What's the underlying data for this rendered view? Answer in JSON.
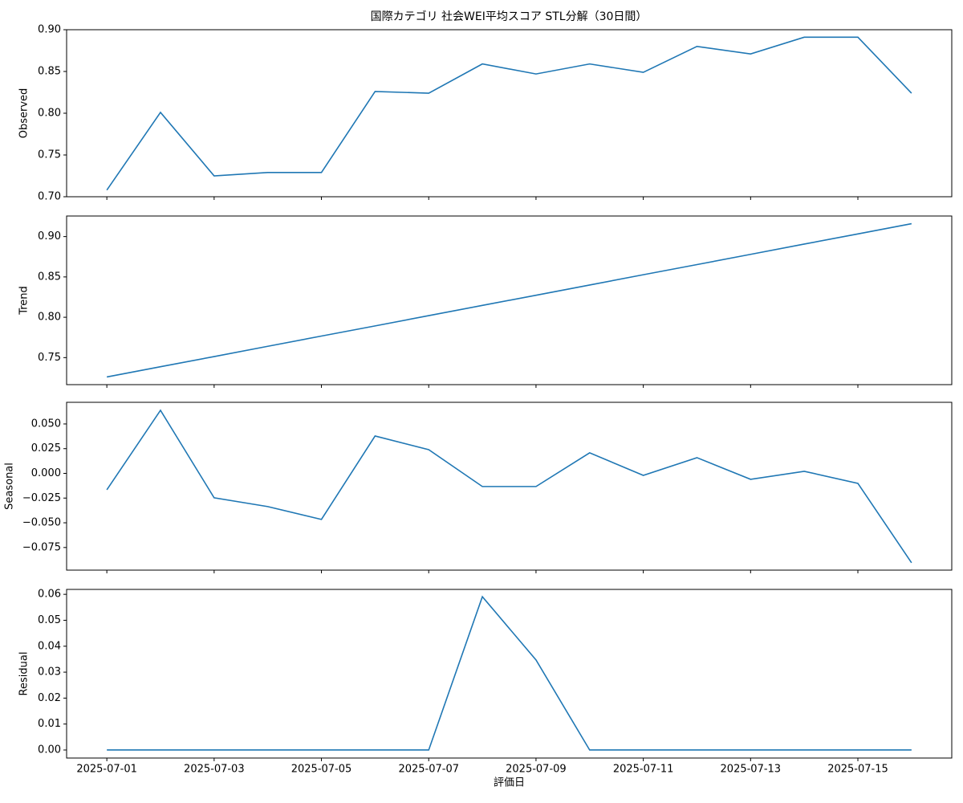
{
  "chart_data": [
    {
      "type": "line",
      "title": "国際カテゴリ 社会WEI平均スコア STL分解（30日間）",
      "ylabel": "Observed",
      "x": [
        "2025-07-01",
        "2025-07-02",
        "2025-07-03",
        "2025-07-04",
        "2025-07-05",
        "2025-07-06",
        "2025-07-07",
        "2025-07-08",
        "2025-07-09",
        "2025-07-10",
        "2025-07-11",
        "2025-07-12",
        "2025-07-13",
        "2025-07-14",
        "2025-07-15",
        "2025-07-16"
      ],
      "values": [
        0.708,
        0.801,
        0.725,
        0.729,
        0.729,
        0.826,
        0.824,
        0.859,
        0.847,
        0.859,
        0.849,
        0.88,
        0.871,
        0.891,
        0.891,
        0.824
      ],
      "color": "#1f77b4",
      "ylim": [
        0.7,
        0.9
      ],
      "yticks": [
        {
          "value": 0.7,
          "label": "0.70"
        },
        0.75,
        {
          "value": 0.8,
          "label": "0.80"
        },
        0.85,
        {
          "value": 0.9,
          "label": "0.90"
        }
      ]
    },
    {
      "type": "line",
      "ylabel": "Trend",
      "x": [
        "2025-07-01",
        "2025-07-02",
        "2025-07-03",
        "2025-07-04",
        "2025-07-05",
        "2025-07-06",
        "2025-07-07",
        "2025-07-08",
        "2025-07-09",
        "2025-07-10",
        "2025-07-11",
        "2025-07-12",
        "2025-07-13",
        "2025-07-14",
        "2025-07-15",
        "2025-07-16"
      ],
      "values": [
        0.726,
        0.7387,
        0.7513,
        0.764,
        0.7767,
        0.7893,
        0.802,
        0.8147,
        0.8273,
        0.84,
        0.8527,
        0.8653,
        0.878,
        0.8907,
        0.9033,
        0.916
      ],
      "color": "#1f77b4",
      "ylim": [
        0.7165,
        0.9255
      ],
      "yticks": [
        0.75,
        {
          "value": 0.8,
          "label": "0.80"
        },
        0.85,
        {
          "value": 0.9,
          "label": "0.90"
        }
      ]
    },
    {
      "type": "line",
      "ylabel": "Seasonal",
      "x": [
        "2025-07-01",
        "2025-07-02",
        "2025-07-03",
        "2025-07-04",
        "2025-07-05",
        "2025-07-06",
        "2025-07-07",
        "2025-07-08",
        "2025-07-09",
        "2025-07-10",
        "2025-07-11",
        "2025-07-12",
        "2025-07-13",
        "2025-07-14",
        "2025-07-15",
        "2025-07-16"
      ],
      "values": [
        -0.0166,
        0.0638,
        -0.0247,
        -0.0336,
        -0.0466,
        0.0378,
        0.024,
        -0.0133,
        -0.0133,
        0.0208,
        -0.002,
        0.0159,
        -0.006,
        0.0021,
        -0.0101,
        -0.0904
      ],
      "color": "#1f77b4",
      "ylim": [
        -0.0979,
        0.0719
      ],
      "yticks": [
        {
          "value": -0.075,
          "label": "−0.075"
        },
        {
          "value": -0.05,
          "label": "−0.050"
        },
        {
          "value": -0.025,
          "label": "−0.025"
        },
        {
          "value": 0,
          "label": "0.000"
        },
        {
          "value": 0.025,
          "label": "0.025"
        },
        {
          "value": 0.05,
          "label": "0.050"
        }
      ]
    },
    {
      "type": "line",
      "ylabel": "Residual",
      "xlabel": "評価日",
      "x": [
        "2025-07-01",
        "2025-07-02",
        "2025-07-03",
        "2025-07-04",
        "2025-07-05",
        "2025-07-06",
        "2025-07-07",
        "2025-07-08",
        "2025-07-09",
        "2025-07-10",
        "2025-07-11",
        "2025-07-12",
        "2025-07-13",
        "2025-07-14",
        "2025-07-15",
        "2025-07-16"
      ],
      "values": [
        0,
        0,
        0,
        0,
        0,
        0,
        0,
        0.0591,
        0.0347,
        0,
        0,
        0,
        0,
        0,
        0,
        0
      ],
      "color": "#1f77b4",
      "ylim": [
        -0.0031,
        0.0619
      ],
      "yticks": [
        {
          "value": 0,
          "label": "0.00"
        },
        {
          "value": 0.01,
          "label": "0.01"
        },
        {
          "value": 0.02,
          "label": "0.02"
        },
        {
          "value": 0.03,
          "label": "0.03"
        },
        {
          "value": 0.04,
          "label": "0.04"
        },
        {
          "value": 0.05,
          "label": "0.05"
        },
        {
          "value": 0.06,
          "label": "0.06"
        }
      ],
      "xticks": [
        "2025-07-01",
        "2025-07-03",
        "2025-07-05",
        "2025-07-07",
        "2025-07-09",
        "2025-07-11",
        "2025-07-13",
        "2025-07-15"
      ]
    }
  ]
}
